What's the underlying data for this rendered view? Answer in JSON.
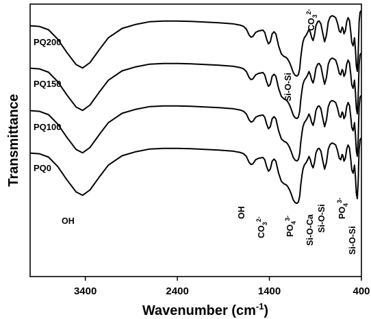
{
  "chart_data": {
    "type": "line",
    "xlabel": "Wavenumber (cm",
    "xlabel_sup": "-1",
    "xlabel_tail": ")",
    "ylabel": "Transmittance",
    "xlim": [
      4000,
      400
    ],
    "x_reversed": true,
    "x_ticks": [
      3400,
      2400,
      1400,
      400
    ],
    "x_tick_labels": [
      "3400",
      "2400",
      "1400",
      "400"
    ],
    "y_ticks_shown": false,
    "grid": false,
    "series": [
      {
        "name": "PQ200",
        "offset": 3
      },
      {
        "name": "PQ150",
        "offset": 2
      },
      {
        "name": "PQ100",
        "offset": 1
      },
      {
        "name": "PQ0",
        "offset": 0
      }
    ],
    "profile": {
      "x": [
        4000,
        3900,
        3800,
        3700,
        3600,
        3500,
        3430,
        3350,
        3250,
        3150,
        3000,
        2850,
        2700,
        2550,
        2400,
        2250,
        2100,
        1950,
        1800,
        1720,
        1680,
        1650,
        1620,
        1600,
        1580,
        1550,
        1520,
        1490,
        1470,
        1450,
        1430,
        1410,
        1390,
        1370,
        1350,
        1330,
        1300,
        1270,
        1240,
        1220,
        1200,
        1180,
        1160,
        1140,
        1120,
        1100,
        1085,
        1070,
        1060,
        1045,
        1035,
        1020,
        1000,
        985,
        970,
        955,
        940,
        925,
        910,
        895,
        875,
        860,
        840,
        820,
        800,
        780,
        760,
        740,
        720,
        700,
        680,
        660,
        640,
        625,
        610,
        600,
        590,
        575,
        560,
        545,
        530,
        515,
        505,
        490,
        475,
        465,
        455,
        445,
        435,
        425,
        415,
        405,
        400
      ],
      "y": [
        0.8,
        0.79,
        0.74,
        0.6,
        0.4,
        0.22,
        0.17,
        0.25,
        0.44,
        0.62,
        0.76,
        0.82,
        0.86,
        0.87,
        0.87,
        0.865,
        0.855,
        0.845,
        0.83,
        0.81,
        0.79,
        0.75,
        0.66,
        0.63,
        0.64,
        0.7,
        0.72,
        0.73,
        0.735,
        0.7,
        0.6,
        0.53,
        0.56,
        0.68,
        0.71,
        0.68,
        0.5,
        0.38,
        0.34,
        0.33,
        0.3,
        0.25,
        0.18,
        0.1,
        0.06,
        0.05,
        0.07,
        0.16,
        0.32,
        0.48,
        0.56,
        0.62,
        0.66,
        0.7,
        0.75,
        0.7,
        0.62,
        0.58,
        0.66,
        0.8,
        0.86,
        0.87,
        0.83,
        0.69,
        0.56,
        0.66,
        0.86,
        0.93,
        0.95,
        0.94,
        0.92,
        0.84,
        0.72,
        0.7,
        0.78,
        0.76,
        0.68,
        0.72,
        0.86,
        0.92,
        0.88,
        0.7,
        0.55,
        0.5,
        0.62,
        0.44,
        0.2,
        0.12,
        0.38,
        0.85,
        1.0,
        1.02,
        1.02
      ]
    },
    "series_labels": [
      "PQ200",
      "PQ150",
      "PQ100",
      "PQ0"
    ],
    "annotations": [
      {
        "key": "oh1",
        "text": "OH",
        "rotate": false
      },
      {
        "key": "oh2",
        "text": "OH",
        "rotate": true
      },
      {
        "key": "co3a",
        "text": "CO",
        "sub": "3",
        "sup": "2-",
        "rotate": true
      },
      {
        "key": "sios1",
        "text": "Si-O-Si",
        "rotate": true
      },
      {
        "key": "po4a",
        "text": "PO",
        "sub": "4",
        "sup": "3-",
        "rotate": true
      },
      {
        "key": "sioca",
        "text": "Si-O-Ca",
        "rotate": true
      },
      {
        "key": "sios2",
        "text": "Si-O-Si",
        "rotate": true
      },
      {
        "key": "po4b",
        "text": "PO",
        "sub": "4",
        "sup": "3-",
        "rotate": true
      },
      {
        "key": "sios3",
        "text": "Si-O-Si",
        "rotate": true
      },
      {
        "key": "co3b",
        "text": "CO",
        "sub": "3",
        "sup": "2-",
        "rotate": true
      }
    ]
  }
}
